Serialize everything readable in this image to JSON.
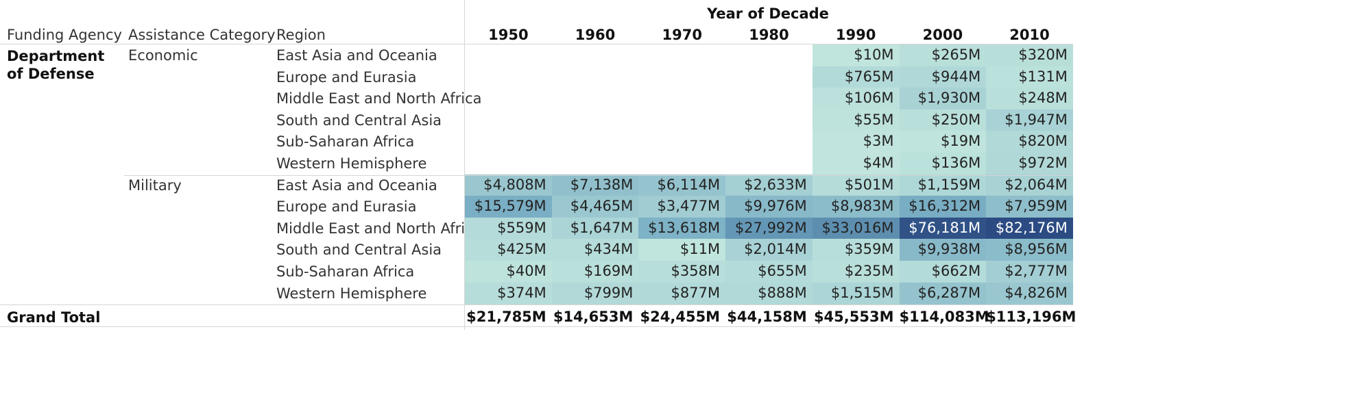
{
  "headers": {
    "year_group": "Year of Decade",
    "funding_agency": "Funding Agency",
    "assistance_category": "Assistance Category",
    "region": "Region"
  },
  "agency": "Department of Defense",
  "grand_total_label": "Grand Total",
  "colors": {
    "low": "#c2e6de",
    "mid": "#6fa6c0",
    "high": "#2b4b82",
    "text_dark": "#222222",
    "text_light": "#ffffff"
  },
  "chart_data": {
    "type": "heatmap",
    "title": "",
    "years": [
      "1950",
      "1960",
      "1970",
      "1980",
      "1990",
      "2000",
      "2010"
    ],
    "categories": [
      {
        "name": "Economic",
        "rows": [
          {
            "region": "East Asia and Oceania",
            "values": [
              null,
              null,
              null,
              null,
              10,
              265,
              320
            ],
            "labels": [
              "",
              "",
              "",
              "",
              "$10M",
              "$265M",
              "$320M"
            ]
          },
          {
            "region": "Europe and Eurasia",
            "values": [
              null,
              null,
              null,
              null,
              765,
              944,
              131
            ],
            "labels": [
              "",
              "",
              "",
              "",
              "$765M",
              "$944M",
              "$131M"
            ]
          },
          {
            "region": "Middle East and North Africa",
            "values": [
              null,
              null,
              null,
              null,
              106,
              1930,
              248
            ],
            "labels": [
              "",
              "",
              "",
              "",
              "$106M",
              "$1,930M",
              "$248M"
            ]
          },
          {
            "region": "South and Central Asia",
            "values": [
              null,
              null,
              null,
              null,
              55,
              250,
              1947
            ],
            "labels": [
              "",
              "",
              "",
              "",
              "$55M",
              "$250M",
              "$1,947M"
            ]
          },
          {
            "region": "Sub-Saharan Africa",
            "values": [
              null,
              null,
              null,
              null,
              3,
              19,
              820
            ],
            "labels": [
              "",
              "",
              "",
              "",
              "$3M",
              "$19M",
              "$820M"
            ]
          },
          {
            "region": "Western Hemisphere",
            "values": [
              null,
              null,
              null,
              null,
              4,
              136,
              972
            ],
            "labels": [
              "",
              "",
              "",
              "",
              "$4M",
              "$136M",
              "$972M"
            ]
          }
        ]
      },
      {
        "name": "Military",
        "rows": [
          {
            "region": "East Asia and Oceania",
            "values": [
              4808,
              7138,
              6114,
              2633,
              501,
              1159,
              2064
            ],
            "labels": [
              "$4,808M",
              "$7,138M",
              "$6,114M",
              "$2,633M",
              "$501M",
              "$1,159M",
              "$2,064M"
            ]
          },
          {
            "region": "Europe and Eurasia",
            "values": [
              15579,
              4465,
              3477,
              9976,
              8983,
              16312,
              7959
            ],
            "labels": [
              "$15,579M",
              "$4,465M",
              "$3,477M",
              "$9,976M",
              "$8,983M",
              "$16,312M",
              "$7,959M"
            ]
          },
          {
            "region": "Middle East and North Africa",
            "values": [
              559,
              1647,
              13618,
              27992,
              33016,
              76181,
              82176
            ],
            "labels": [
              "$559M",
              "$1,647M",
              "$13,618M",
              "$27,992M",
              "$33,016M",
              "$76,181M",
              "$82,176M"
            ]
          },
          {
            "region": "South and Central Asia",
            "values": [
              425,
              434,
              11,
              2014,
              359,
              9938,
              8956
            ],
            "labels": [
              "$425M",
              "$434M",
              "$11M",
              "$2,014M",
              "$359M",
              "$9,938M",
              "$8,956M"
            ]
          },
          {
            "region": "Sub-Saharan Africa",
            "values": [
              40,
              169,
              358,
              655,
              235,
              662,
              2777
            ],
            "labels": [
              "$40M",
              "$169M",
              "$358M",
              "$655M",
              "$235M",
              "$662M",
              "$2,777M"
            ]
          },
          {
            "region": "Western Hemisphere",
            "values": [
              374,
              799,
              877,
              888,
              1515,
              6287,
              4826
            ],
            "labels": [
              "$374M",
              "$799M",
              "$877M",
              "$888M",
              "$1,515M",
              "$6,287M",
              "$4,826M"
            ]
          }
        ]
      }
    ],
    "grand_total": {
      "values": [
        21785,
        14653,
        24455,
        44158,
        45553,
        114083,
        113196
      ],
      "labels": [
        "$21,785M",
        "$14,653M",
        "$24,455M",
        "$44,158M",
        "$45,553M",
        "$114,083M",
        "$113,196M"
      ]
    },
    "color_scale": {
      "min": 0,
      "max": 82176
    }
  }
}
